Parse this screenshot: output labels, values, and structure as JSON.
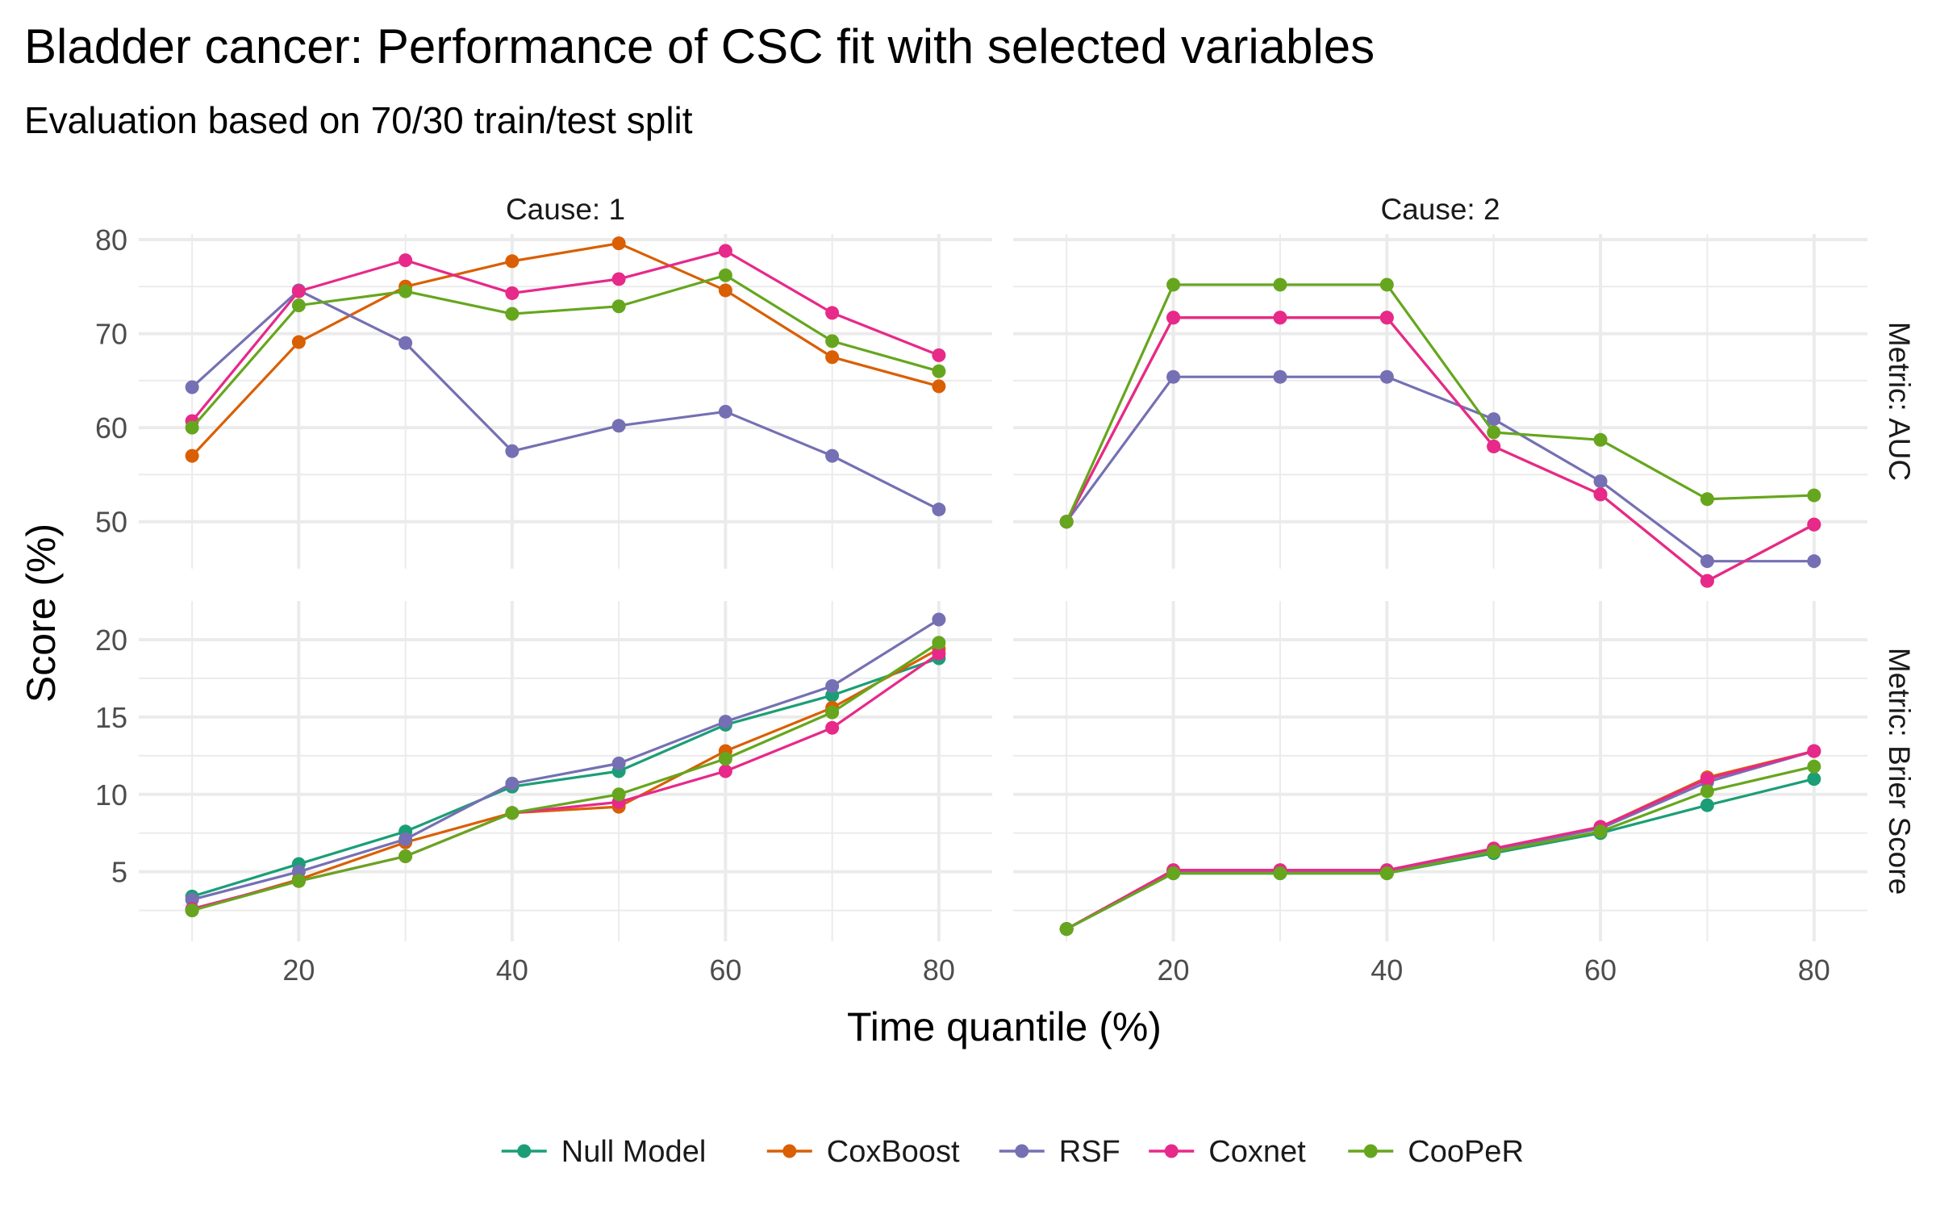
{
  "chart_data": {
    "type": "line",
    "title": "Bladder cancer: Performance of CSC fit with selected variables",
    "subtitle": "Evaluation based on 70/30 train/test split",
    "xlabel": "Time quantile (%)",
    "ylabel": "Score (%)",
    "x": [
      10,
      20,
      30,
      40,
      50,
      60,
      70,
      80
    ],
    "x_ticks": [
      20,
      40,
      60,
      80
    ],
    "xlim": [
      5,
      85
    ],
    "grid": true,
    "legend_position": "bottom",
    "colors": {
      "Null Model": "#1b9e77",
      "CoxBoost": "#d95f02",
      "RSF": "#7570b3",
      "Coxnet": "#e7298a",
      "CooPeR": "#66a61e"
    },
    "legend": [
      "Null Model",
      "CoxBoost",
      "RSF",
      "Coxnet",
      "CooPeR"
    ],
    "columns": [
      "Cause: 1",
      "Cause: 2"
    ],
    "rows": [
      {
        "label": "Metric: AUC",
        "ylim": [
          45,
          80.6
        ],
        "y_ticks": [
          50,
          60,
          70,
          80
        ],
        "panels": [
          {
            "series": [
              {
                "name": "CoxBoost",
                "values": [
                  57.0,
                  69.1,
                  75.0,
                  77.7,
                  79.6,
                  74.6,
                  67.5,
                  64.4
                ]
              },
              {
                "name": "RSF",
                "values": [
                  64.3,
                  74.6,
                  69.0,
                  57.5,
                  60.2,
                  61.7,
                  57.0,
                  51.3
                ]
              },
              {
                "name": "Coxnet",
                "values": [
                  60.7,
                  74.5,
                  77.8,
                  74.3,
                  75.8,
                  78.8,
                  72.2,
                  67.7
                ]
              },
              {
                "name": "CooPeR",
                "values": [
                  60.0,
                  73.0,
                  74.5,
                  72.1,
                  72.9,
                  76.2,
                  69.2,
                  66.0
                ]
              }
            ]
          },
          {
            "series": [
              {
                "name": "CoxBoost",
                "values": [
                  50.0,
                  71.7,
                  71.7,
                  71.7,
                  58.0,
                  52.9,
                  43.7,
                  49.7
                ]
              },
              {
                "name": "RSF",
                "values": [
                  50.0,
                  65.4,
                  65.4,
                  65.4,
                  60.9,
                  54.3,
                  45.8,
                  45.8
                ]
              },
              {
                "name": "Coxnet",
                "values": [
                  50.0,
                  71.7,
                  71.7,
                  71.7,
                  58.0,
                  52.9,
                  43.7,
                  49.7
                ]
              },
              {
                "name": "CooPeR",
                "values": [
                  50.0,
                  75.2,
                  75.2,
                  75.2,
                  59.5,
                  58.7,
                  52.4,
                  52.8
                ]
              }
            ]
          }
        ]
      },
      {
        "label": "Metric: Brier Score",
        "ylim": [
          0.5,
          22.5
        ],
        "y_ticks": [
          5,
          10,
          15,
          20
        ],
        "panels": [
          {
            "series": [
              {
                "name": "Null Model",
                "values": [
                  3.4,
                  5.5,
                  7.6,
                  10.5,
                  11.5,
                  14.5,
                  16.4,
                  18.8
                ]
              },
              {
                "name": "CoxBoost",
                "values": [
                  2.5,
                  4.5,
                  6.9,
                  8.8,
                  9.2,
                  12.8,
                  15.6,
                  19.4
                ]
              },
              {
                "name": "RSF",
                "values": [
                  3.2,
                  5.0,
                  7.1,
                  10.7,
                  12.0,
                  14.7,
                  17.0,
                  21.3
                ]
              },
              {
                "name": "Coxnet",
                "values": [
                  2.6,
                  4.4,
                  6.0,
                  8.8,
                  9.5,
                  11.5,
                  14.3,
                  19.1
                ]
              },
              {
                "name": "CooPeR",
                "values": [
                  2.5,
                  4.4,
                  6.0,
                  8.8,
                  10.0,
                  12.3,
                  15.3,
                  19.8
                ]
              }
            ]
          },
          {
            "series": [
              {
                "name": "Null Model",
                "values": [
                  1.3,
                  4.9,
                  4.9,
                  4.9,
                  6.2,
                  7.5,
                  9.3,
                  11.0
                ]
              },
              {
                "name": "CoxBoost",
                "values": [
                  1.3,
                  5.1,
                  5.1,
                  5.1,
                  6.5,
                  7.9,
                  11.1,
                  12.8
                ]
              },
              {
                "name": "RSF",
                "values": [
                  1.3,
                  5.0,
                  5.0,
                  5.0,
                  6.4,
                  7.8,
                  10.8,
                  12.8
                ]
              },
              {
                "name": "Coxnet",
                "values": [
                  1.3,
                  5.1,
                  5.1,
                  5.1,
                  6.5,
                  7.9,
                  11.0,
                  12.8
                ]
              },
              {
                "name": "CooPeR",
                "values": [
                  1.3,
                  4.9,
                  4.9,
                  4.9,
                  6.3,
                  7.6,
                  10.2,
                  11.8
                ]
              }
            ]
          }
        ]
      }
    ]
  }
}
